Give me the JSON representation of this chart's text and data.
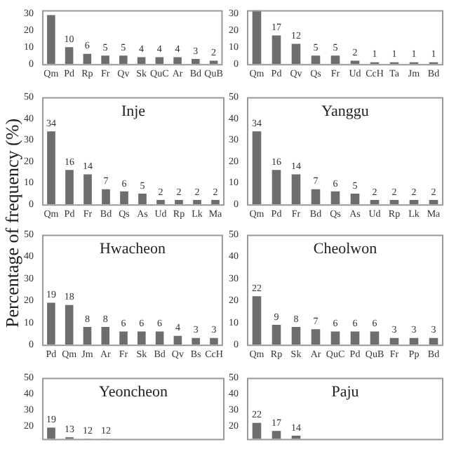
{
  "chart_data": [
    {
      "type": "bar",
      "categories": [
        "Qm",
        "Pd",
        "Rp",
        "Fr",
        "Qv",
        "Sk",
        "QuC",
        "Ar",
        "Bd",
        "QuB"
      ],
      "values": [
        29,
        10,
        6,
        5,
        5,
        4,
        4,
        4,
        3,
        2
      ],
      "value_labels": [
        null,
        "10",
        "6",
        "5",
        "5",
        "4",
        "4",
        "4",
        "3",
        "2"
      ],
      "color": "#6d6d6d",
      "ylim": [
        0,
        32
      ],
      "yticks": [
        0,
        10,
        20,
        30
      ],
      "grid": false,
      "legend": false
    },
    {
      "type": "bar",
      "categories": [
        "Qm",
        "Pd",
        "Qv",
        "Qs",
        "Fr",
        "Ud",
        "CcH",
        "Ta",
        "Jm",
        "Bd"
      ],
      "values": [
        32,
        17,
        12,
        5,
        5,
        2,
        1,
        1,
        1,
        1
      ],
      "value_labels": [
        null,
        "17",
        "12",
        "5",
        "5",
        "2",
        "1",
        "1",
        "1",
        "1"
      ],
      "color": "#6d6d6d",
      "ylim": [
        0,
        32
      ],
      "yticks": [
        0,
        10,
        20,
        30
      ],
      "grid": false,
      "legend": false
    },
    {
      "type": "bar",
      "title": "Inje",
      "ylabel": "Percentage of frequency (%)",
      "categories": [
        "Qm",
        "Pd",
        "Fr",
        "Bd",
        "Qs",
        "As",
        "Ud",
        "Rp",
        "Lk",
        "Ma"
      ],
      "values": [
        34,
        16,
        14,
        7,
        6,
        5,
        2,
        2,
        2,
        2
      ],
      "data_labels": true,
      "color": "#6d6d6d",
      "ylim": [
        0,
        50
      ],
      "yticks": [
        0,
        10,
        20,
        30,
        40,
        50
      ],
      "grid": false,
      "legend": false
    },
    {
      "type": "bar",
      "title": "Yanggu",
      "categories": [
        "Qm",
        "Pd",
        "Fr",
        "Bd",
        "Qs",
        "As",
        "Ud",
        "Rp",
        "Lk",
        "Ma"
      ],
      "values": [
        34,
        16,
        14,
        7,
        6,
        5,
        2,
        2,
        2,
        2
      ],
      "data_labels": true,
      "color": "#6d6d6d",
      "ylim": [
        0,
        50
      ],
      "yticks": [
        0,
        10,
        20,
        30,
        40,
        50
      ],
      "grid": false,
      "legend": false
    },
    {
      "type": "bar",
      "title": "Hwacheon",
      "categories": [
        "Pd",
        "Qm",
        "Jm",
        "Ar",
        "Fr",
        "Sk",
        "Bd",
        "Qv",
        "Bs",
        "CcH"
      ],
      "values": [
        19,
        18,
        8,
        8,
        6,
        6,
        6,
        4,
        3,
        3
      ],
      "data_labels": true,
      "color": "#6d6d6d",
      "ylim": [
        0,
        50
      ],
      "yticks": [
        0,
        10,
        20,
        30,
        40,
        50
      ],
      "grid": false,
      "legend": false
    },
    {
      "type": "bar",
      "title": "Cheolwon",
      "categories": [
        "Qm",
        "Rp",
        "Sk",
        "Ar",
        "QuC",
        "Pd",
        "QuB",
        "Fr",
        "Pp",
        "Bd"
      ],
      "values": [
        22,
        9,
        8,
        7,
        6,
        6,
        6,
        3,
        3,
        3
      ],
      "data_labels": true,
      "color": "#6d6d6d",
      "ylim": [
        0,
        50
      ],
      "yticks": [
        0,
        10,
        20,
        30,
        40,
        50
      ],
      "grid": false,
      "legend": false
    },
    {
      "type": "bar",
      "title": "Yeoncheon",
      "categories": [
        null,
        null,
        null,
        null,
        null,
        null,
        null,
        null,
        null,
        null
      ],
      "values": [
        19,
        13,
        12,
        12,
        null,
        null,
        null,
        null,
        null,
        null
      ],
      "data_labels": true,
      "color": "#6d6d6d",
      "ylim": [
        12,
        50
      ],
      "yticks": [
        20,
        30,
        40,
        50
      ],
      "grid": false,
      "legend": false
    },
    {
      "type": "bar",
      "title": "Paju",
      "categories": [
        null,
        null,
        null,
        null,
        null,
        null,
        null,
        null,
        null,
        null
      ],
      "values": [
        22,
        17,
        14,
        null,
        null,
        null,
        null,
        null,
        null,
        null
      ],
      "data_labels": true,
      "color": "#6d6d6d",
      "ylim": [
        12,
        50
      ],
      "yticks": [
        20,
        30,
        40,
        50
      ],
      "grid": false,
      "legend": false
    }
  ]
}
